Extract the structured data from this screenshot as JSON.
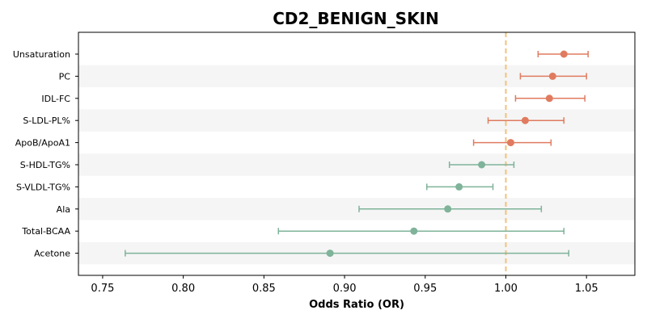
{
  "chart_data": {
    "type": "forest",
    "title": "CD2_BENIGN_SKIN",
    "xlabel": "Odds Ratio (OR)",
    "xlim": [
      0.735,
      1.08
    ],
    "xticks": [
      "0.75",
      "0.80",
      "0.85",
      "0.90",
      "0.95",
      "1.00",
      "1.05"
    ],
    "reference_line": 1.0,
    "colors": {
      "positive": "#e07b5f",
      "negative": "#7fb39a",
      "reference": "#f0c27b",
      "band": "#f5f5f5"
    },
    "categories": [
      "Unsaturation",
      "PC",
      "IDL-FC",
      "S-LDL-PL%",
      "ApoB/ApoA1",
      "S-HDL-TG%",
      "S-VLDL-TG%",
      "Ala",
      "Total-BCAA",
      "Acetone"
    ],
    "or": [
      1.036,
      1.029,
      1.027,
      1.012,
      1.003,
      0.985,
      0.971,
      0.964,
      0.943,
      0.891
    ],
    "ci_low": [
      1.02,
      1.009,
      1.006,
      0.989,
      0.98,
      0.965,
      0.951,
      0.909,
      0.859,
      0.764
    ],
    "ci_high": [
      1.051,
      1.05,
      1.049,
      1.036,
      1.028,
      1.005,
      0.992,
      1.022,
      1.036,
      1.039
    ]
  }
}
